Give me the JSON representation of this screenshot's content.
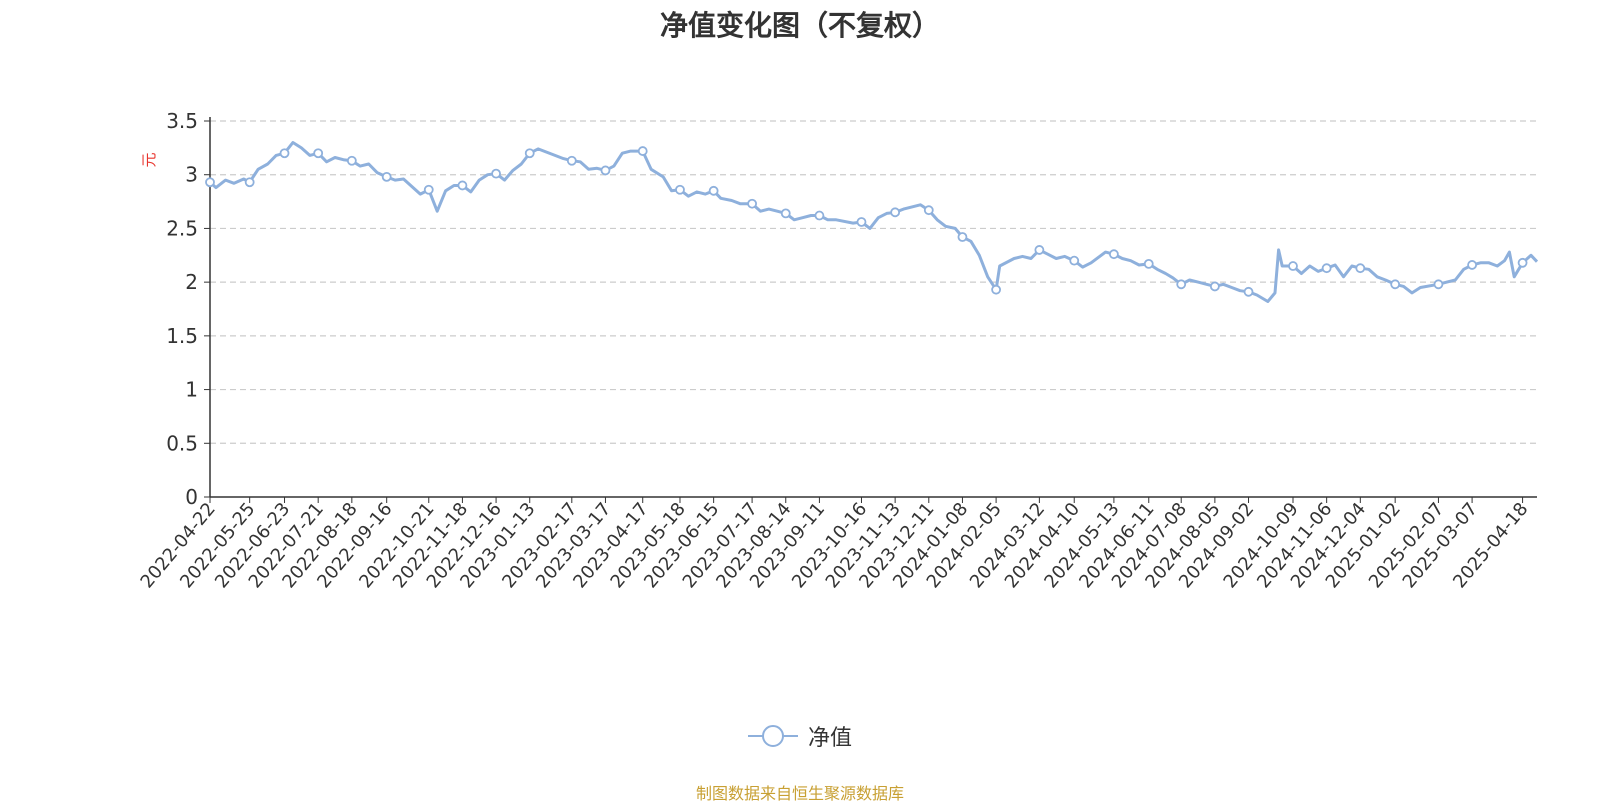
{
  "chart_data": {
    "type": "line",
    "title": "净值变化图（不复权）",
    "ylabel": "元",
    "ylim": [
      0,
      3.5
    ],
    "yticks": [
      0,
      0.5,
      1,
      1.5,
      2,
      2.5,
      3,
      3.5
    ],
    "ytick_labels": [
      "0",
      "0.5",
      "1",
      "1.5",
      "2",
      "2.5",
      "3",
      "3.5"
    ],
    "xlim": [
      "2022-04-22",
      "2025-04-30"
    ],
    "xticks": [
      "2022-04-22",
      "2022-05-25",
      "2022-06-23",
      "2022-07-21",
      "2022-08-18",
      "2022-09-16",
      "2022-10-21",
      "2022-11-18",
      "2022-12-16",
      "2023-01-13",
      "2023-02-17",
      "2023-03-17",
      "2023-04-17",
      "2023-05-18",
      "2023-06-15",
      "2023-07-17",
      "2023-08-14",
      "2023-09-11",
      "2023-10-16",
      "2023-11-13",
      "2023-12-11",
      "2024-01-08",
      "2024-02-05",
      "2024-03-12",
      "2024-04-10",
      "2024-05-13",
      "2024-06-11",
      "2024-07-08",
      "2024-08-05",
      "2024-09-02",
      "2024-10-09",
      "2024-11-06",
      "2024-12-04",
      "2025-01-02",
      "2025-02-07",
      "2025-03-07",
      "2025-04-18"
    ],
    "grid": true,
    "legend_position": "bottom",
    "series": [
      {
        "name": "净值",
        "color": "#8eb0dc",
        "x": [
          "2022-04-22",
          "2022-04-27",
          "2022-05-05",
          "2022-05-12",
          "2022-05-20",
          "2022-05-25",
          "2022-06-01",
          "2022-06-09",
          "2022-06-16",
          "2022-06-23",
          "2022-06-30",
          "2022-07-07",
          "2022-07-14",
          "2022-07-21",
          "2022-07-28",
          "2022-08-04",
          "2022-08-11",
          "2022-08-18",
          "2022-08-25",
          "2022-09-01",
          "2022-09-08",
          "2022-09-16",
          "2022-09-23",
          "2022-09-30",
          "2022-10-14",
          "2022-10-21",
          "2022-10-28",
          "2022-11-04",
          "2022-11-11",
          "2022-11-18",
          "2022-11-25",
          "2022-12-02",
          "2022-12-09",
          "2022-12-16",
          "2022-12-23",
          "2022-12-30",
          "2023-01-06",
          "2023-01-13",
          "2023-01-20",
          "2023-02-03",
          "2023-02-10",
          "2023-02-17",
          "2023-02-24",
          "2023-03-03",
          "2023-03-10",
          "2023-03-17",
          "2023-03-24",
          "2023-03-31",
          "2023-04-07",
          "2023-04-17",
          "2023-04-24",
          "2023-05-04",
          "2023-05-11",
          "2023-05-18",
          "2023-05-25",
          "2023-06-01",
          "2023-06-08",
          "2023-06-15",
          "2023-06-21",
          "2023-06-30",
          "2023-07-07",
          "2023-07-17",
          "2023-07-24",
          "2023-07-31",
          "2023-08-07",
          "2023-08-14",
          "2023-08-21",
          "2023-08-28",
          "2023-09-04",
          "2023-09-11",
          "2023-09-18",
          "2023-09-25",
          "2023-10-09",
          "2023-10-16",
          "2023-10-23",
          "2023-10-30",
          "2023-11-06",
          "2023-11-13",
          "2023-11-20",
          "2023-11-27",
          "2023-12-04",
          "2023-12-11",
          "2023-12-18",
          "2023-12-25",
          "2024-01-02",
          "2024-01-08",
          "2024-01-15",
          "2024-01-22",
          "2024-01-29",
          "2024-02-05",
          "2024-02-08",
          "2024-02-20",
          "2024-02-27",
          "2024-03-05",
          "2024-03-12",
          "2024-03-19",
          "2024-03-26",
          "2024-04-02",
          "2024-04-10",
          "2024-04-17",
          "2024-04-24",
          "2024-05-06",
          "2024-05-13",
          "2024-05-20",
          "2024-05-27",
          "2024-06-03",
          "2024-06-11",
          "2024-06-18",
          "2024-06-25",
          "2024-07-01",
          "2024-07-08",
          "2024-07-15",
          "2024-07-22",
          "2024-07-29",
          "2024-08-05",
          "2024-08-12",
          "2024-08-19",
          "2024-08-26",
          "2024-09-02",
          "2024-09-09",
          "2024-09-18",
          "2024-09-24",
          "2024-09-27",
          "2024-09-30",
          "2024-10-09",
          "2024-10-16",
          "2024-10-23",
          "2024-10-30",
          "2024-11-06",
          "2024-11-13",
          "2024-11-20",
          "2024-11-27",
          "2024-12-04",
          "2024-12-11",
          "2024-12-18",
          "2024-12-25",
          "2025-01-02",
          "2025-01-09",
          "2025-01-16",
          "2025-01-23",
          "2025-02-07",
          "2025-02-14",
          "2025-02-21",
          "2025-02-28",
          "2025-03-07",
          "2025-03-14",
          "2025-03-21",
          "2025-03-28",
          "2025-04-03",
          "2025-04-07",
          "2025-04-11",
          "2025-04-18",
          "2025-04-25",
          "2025-04-30"
        ],
        "y": [
          2.93,
          2.88,
          2.95,
          2.92,
          2.96,
          2.93,
          3.05,
          3.1,
          3.18,
          3.2,
          3.3,
          3.25,
          3.18,
          3.2,
          3.12,
          3.16,
          3.14,
          3.13,
          3.08,
          3.1,
          3.02,
          2.98,
          2.95,
          2.96,
          2.82,
          2.86,
          2.66,
          2.85,
          2.9,
          2.9,
          2.84,
          2.95,
          3.0,
          3.01,
          2.95,
          3.04,
          3.1,
          3.2,
          3.24,
          3.18,
          3.15,
          3.13,
          3.12,
          3.05,
          3.06,
          3.04,
          3.08,
          3.2,
          3.22,
          3.22,
          3.05,
          2.98,
          2.85,
          2.86,
          2.8,
          2.84,
          2.82,
          2.85,
          2.78,
          2.76,
          2.73,
          2.73,
          2.66,
          2.68,
          2.66,
          2.64,
          2.58,
          2.6,
          2.62,
          2.62,
          2.58,
          2.58,
          2.55,
          2.56,
          2.5,
          2.6,
          2.64,
          2.65,
          2.68,
          2.7,
          2.72,
          2.67,
          2.58,
          2.52,
          2.5,
          2.42,
          2.38,
          2.25,
          2.05,
          1.93,
          2.15,
          2.22,
          2.24,
          2.22,
          2.3,
          2.26,
          2.22,
          2.24,
          2.2,
          2.14,
          2.18,
          2.28,
          2.26,
          2.22,
          2.2,
          2.16,
          2.17,
          2.12,
          2.08,
          2.04,
          1.98,
          2.02,
          2.0,
          1.98,
          1.96,
          1.98,
          1.95,
          1.92,
          1.91,
          1.88,
          1.82,
          1.9,
          2.3,
          2.15,
          2.15,
          2.08,
          2.15,
          2.1,
          2.13,
          2.16,
          2.05,
          2.15,
          2.13,
          2.12,
          2.05,
          2.02,
          1.98,
          1.96,
          1.9,
          1.95,
          1.98,
          2.0,
          2.02,
          2.12,
          2.16,
          2.18,
          2.18,
          2.15,
          2.2,
          2.28,
          2.05,
          2.18,
          2.25,
          2.19
        ]
      }
    ]
  },
  "legend": {
    "label": "净值"
  },
  "source": "制图数据来自恒生聚源数据库"
}
